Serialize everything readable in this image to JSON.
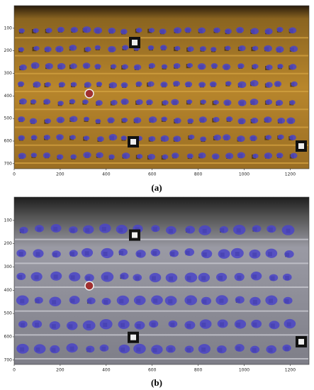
{
  "panels": [
    {
      "label": "(a)",
      "xticks": [
        0,
        200,
        400,
        600,
        800,
        1000,
        1200
      ],
      "yticks": [
        100,
        200,
        300,
        400,
        500,
        600,
        700
      ]
    },
    {
      "label": "(b)",
      "xticks": [
        0,
        200,
        400,
        600,
        800,
        1000,
        1200
      ],
      "yticks": [
        100,
        200,
        300,
        400,
        500,
        600,
        700
      ]
    }
  ]
}
